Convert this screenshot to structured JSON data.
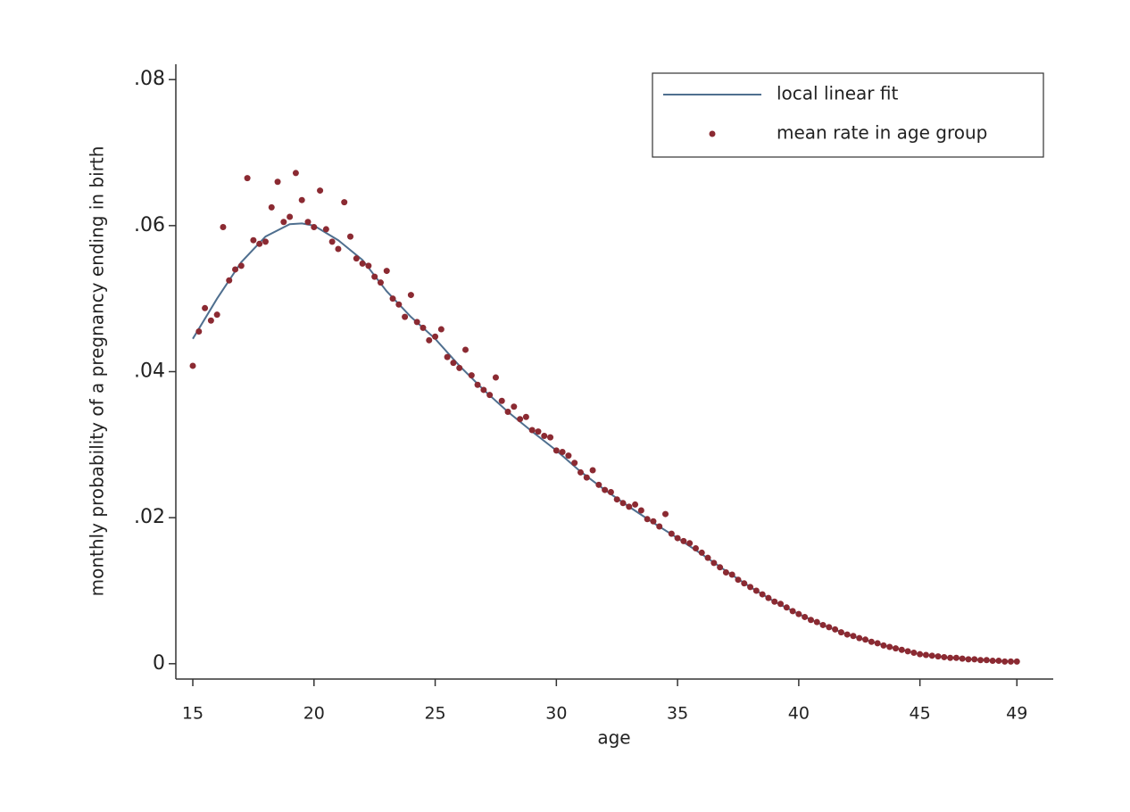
{
  "chart_data": {
    "type": "scatter",
    "xlabel": "age",
    "ylabel": "monthly probability of a pregnancy ending in birth",
    "xlim": [
      14.3,
      50.5
    ],
    "ylim": [
      -0.0021,
      0.0821
    ],
    "xticks": [
      15,
      20,
      25,
      30,
      35,
      40,
      45,
      49
    ],
    "yticks": [
      0,
      {
        "value": 0.02,
        "label": ".02"
      },
      {
        "value": 0.04,
        "label": ".04"
      },
      {
        "value": 0.06,
        "label": ".06"
      },
      {
        "value": 0.08,
        "label": ".08"
      }
    ],
    "grid": false,
    "legend": "top-right",
    "series": [
      {
        "name": "local linear fit",
        "type": "line",
        "color": "#4f6f8f",
        "x": [
          15,
          16,
          17,
          18,
          19,
          19.5,
          20,
          21,
          22,
          23,
          24,
          25,
          26,
          27,
          28,
          29,
          30,
          31,
          32,
          33,
          34,
          35,
          36,
          37,
          38,
          39,
          40,
          41,
          42,
          43,
          44,
          45,
          46,
          47,
          48,
          49
        ],
        "values": [
          0.0445,
          0.05,
          0.055,
          0.0585,
          0.0602,
          0.0603,
          0.06,
          0.058,
          0.0553,
          0.051,
          0.0475,
          0.0445,
          0.0408,
          0.0375,
          0.0345,
          0.0318,
          0.0292,
          0.0263,
          0.0238,
          0.0215,
          0.0193,
          0.0172,
          0.015,
          0.0127,
          0.0105,
          0.0085,
          0.0068,
          0.0053,
          0.004,
          0.003,
          0.0021,
          0.0013,
          0.0009,
          0.0006,
          0.0004,
          0.0003
        ]
      },
      {
        "name": "mean rate in age group",
        "type": "scatter",
        "color": "#8b2a32",
        "x": [
          15,
          15.25,
          15.5,
          15.75,
          16,
          16.25,
          16.5,
          16.75,
          17,
          17.25,
          17.5,
          17.75,
          18,
          18.25,
          18.5,
          18.75,
          19,
          19.25,
          19.5,
          19.75,
          20,
          20.25,
          20.5,
          20.75,
          21,
          21.25,
          21.5,
          21.75,
          22,
          22.25,
          22.5,
          22.75,
          23,
          23.25,
          23.5,
          23.75,
          24,
          24.25,
          24.5,
          24.75,
          25,
          25.25,
          25.5,
          25.75,
          26,
          26.25,
          26.5,
          26.75,
          27,
          27.25,
          27.5,
          27.75,
          28,
          28.25,
          28.5,
          28.75,
          29,
          29.25,
          29.5,
          29.75,
          30,
          30.25,
          30.5,
          30.75,
          31,
          31.25,
          31.5,
          31.75,
          32,
          32.25,
          32.5,
          32.75,
          33,
          33.25,
          33.5,
          33.75,
          34,
          34.25,
          34.5,
          34.75,
          35,
          35.25,
          35.5,
          35.75,
          36,
          36.25,
          36.5,
          36.75,
          37,
          37.25,
          37.5,
          37.75,
          38,
          38.25,
          38.5,
          38.75,
          39,
          39.25,
          39.5,
          39.75,
          40,
          40.25,
          40.5,
          40.75,
          41,
          41.25,
          41.5,
          41.75,
          42,
          42.25,
          42.5,
          42.75,
          43,
          43.25,
          43.5,
          43.75,
          44,
          44.25,
          44.5,
          44.75,
          45,
          45.25,
          45.5,
          45.75,
          46,
          46.25,
          46.5,
          46.75,
          47,
          47.25,
          47.5,
          47.75,
          48,
          48.25,
          48.5,
          48.75,
          49
        ],
        "values": [
          0.0408,
          0.0455,
          0.0487,
          0.047,
          0.0478,
          0.0598,
          0.0525,
          0.054,
          0.0545,
          0.0665,
          0.058,
          0.0575,
          0.0578,
          0.0625,
          0.066,
          0.0605,
          0.0612,
          0.0672,
          0.0635,
          0.0605,
          0.0598,
          0.0648,
          0.0595,
          0.0578,
          0.0568,
          0.0632,
          0.0585,
          0.0555,
          0.0548,
          0.0545,
          0.053,
          0.0522,
          0.0538,
          0.05,
          0.0492,
          0.0475,
          0.0505,
          0.0468,
          0.046,
          0.0443,
          0.0448,
          0.0458,
          0.042,
          0.0412,
          0.0405,
          0.043,
          0.0395,
          0.0382,
          0.0375,
          0.0368,
          0.0392,
          0.036,
          0.0345,
          0.0352,
          0.0335,
          0.0338,
          0.032,
          0.0318,
          0.0312,
          0.031,
          0.0292,
          0.029,
          0.0285,
          0.0275,
          0.0262,
          0.0255,
          0.0265,
          0.0245,
          0.0238,
          0.0235,
          0.0225,
          0.022,
          0.0215,
          0.0218,
          0.021,
          0.0198,
          0.0195,
          0.0188,
          0.0205,
          0.0178,
          0.0172,
          0.0168,
          0.0165,
          0.0158,
          0.0152,
          0.0145,
          0.0138,
          0.0132,
          0.0125,
          0.0122,
          0.0115,
          0.011,
          0.0105,
          0.01,
          0.0095,
          0.009,
          0.0085,
          0.0082,
          0.0077,
          0.0072,
          0.0068,
          0.0064,
          0.006,
          0.0057,
          0.0053,
          0.005,
          0.0047,
          0.0043,
          0.004,
          0.0038,
          0.0035,
          0.0033,
          0.003,
          0.0028,
          0.0025,
          0.0023,
          0.0021,
          0.0019,
          0.0017,
          0.0015,
          0.0013,
          0.0012,
          0.0011,
          0.001,
          0.0009,
          0.0008,
          0.0008,
          0.0007,
          0.0006,
          0.0006,
          0.0005,
          0.0005,
          0.0004,
          0.0004,
          0.0003,
          0.0003,
          0.0003
        ]
      }
    ]
  }
}
